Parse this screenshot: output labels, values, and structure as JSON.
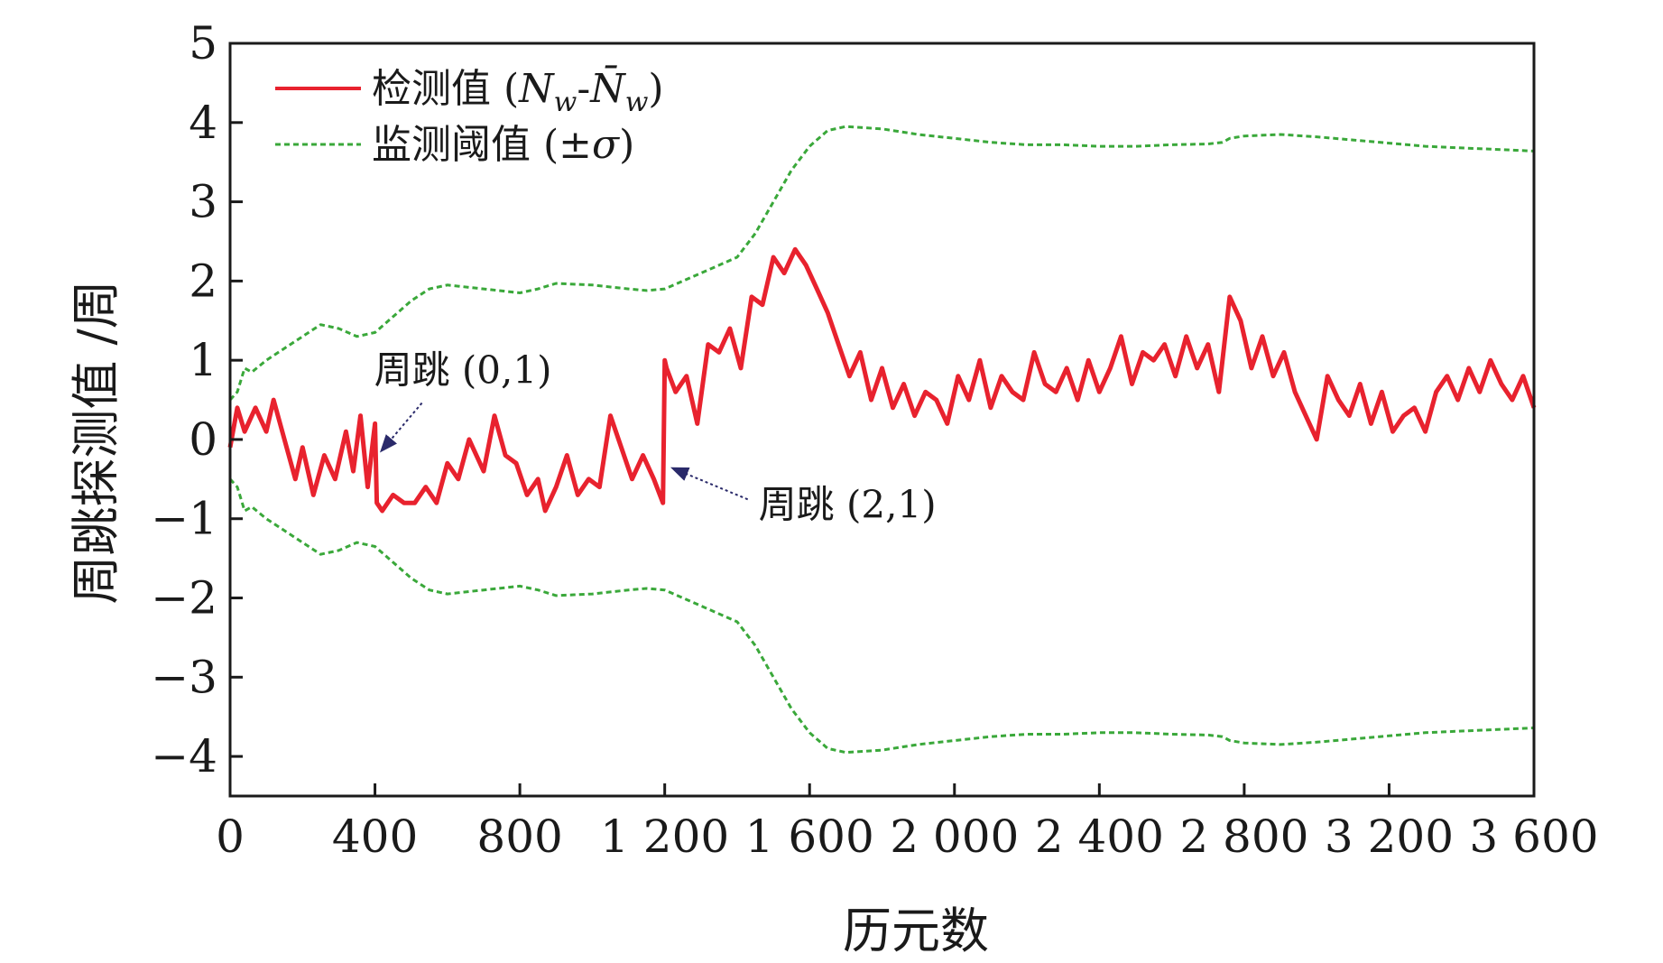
{
  "chart_data": {
    "type": "line",
    "title": "",
    "xlabel": "历元数",
    "ylabel": "周跳探测值 /周",
    "xlim": [
      0,
      3600
    ],
    "ylim": [
      -4.5,
      5
    ],
    "x_ticks": [
      0,
      400,
      800,
      1200,
      1600,
      2000,
      2400,
      2800,
      3200,
      3600
    ],
    "x_tick_labels": [
      "0",
      "400",
      "800",
      "1 200",
      "1 600",
      "2 000",
      "2 400",
      "2 800",
      "3 200",
      "3 600"
    ],
    "y_ticks": [
      -4,
      -3,
      -2,
      -1,
      0,
      1,
      2,
      3,
      4,
      5
    ],
    "y_tick_labels": [
      "−4",
      "−3",
      "−2",
      "−1",
      "0",
      "1",
      "2",
      "3",
      "4",
      "5"
    ],
    "grid": false,
    "legend_position": "top-left",
    "series": [
      {
        "name": "检测值 (Nw-N̄w)",
        "color": "#e8222e",
        "style": "solid",
        "x": [
          0,
          20,
          40,
          70,
          100,
          120,
          150,
          180,
          200,
          230,
          260,
          290,
          320,
          340,
          360,
          380,
          395,
          400,
          405,
          420,
          450,
          480,
          510,
          540,
          570,
          600,
          630,
          660,
          700,
          730,
          760,
          790,
          820,
          850,
          870,
          900,
          930,
          960,
          990,
          1020,
          1050,
          1080,
          1110,
          1140,
          1170,
          1195,
          1200,
          1205,
          1230,
          1260,
          1290,
          1320,
          1350,
          1380,
          1410,
          1440,
          1470,
          1500,
          1530,
          1560,
          1590,
          1620,
          1650,
          1680,
          1710,
          1740,
          1770,
          1800,
          1830,
          1860,
          1890,
          1920,
          1950,
          1980,
          2010,
          2040,
          2070,
          2100,
          2130,
          2160,
          2190,
          2220,
          2250,
          2280,
          2310,
          2340,
          2370,
          2400,
          2430,
          2460,
          2490,
          2520,
          2550,
          2580,
          2610,
          2640,
          2670,
          2700,
          2730,
          2760,
          2790,
          2820,
          2850,
          2880,
          2910,
          2940,
          2970,
          3000,
          3030,
          3060,
          3090,
          3120,
          3150,
          3180,
          3210,
          3240,
          3270,
          3300,
          3330,
          3360,
          3390,
          3420,
          3450,
          3480,
          3510,
          3540,
          3570,
          3600
        ],
        "y": [
          -0.1,
          0.4,
          0.1,
          0.4,
          0.1,
          0.5,
          0.0,
          -0.5,
          -0.1,
          -0.7,
          -0.2,
          -0.5,
          0.1,
          -0.4,
          0.3,
          -0.6,
          0.0,
          0.2,
          -0.8,
          -0.9,
          -0.7,
          -0.8,
          -0.8,
          -0.6,
          -0.8,
          -0.3,
          -0.5,
          0.0,
          -0.4,
          0.3,
          -0.2,
          -0.3,
          -0.7,
          -0.5,
          -0.9,
          -0.6,
          -0.2,
          -0.7,
          -0.5,
          -0.6,
          0.3,
          -0.1,
          -0.5,
          -0.2,
          -0.5,
          -0.8,
          1.0,
          0.9,
          0.6,
          0.8,
          0.2,
          1.2,
          1.1,
          1.4,
          0.9,
          1.8,
          1.7,
          2.3,
          2.1,
          2.4,
          2.2,
          1.9,
          1.6,
          1.2,
          0.8,
          1.1,
          0.5,
          0.9,
          0.4,
          0.7,
          0.3,
          0.6,
          0.5,
          0.2,
          0.8,
          0.5,
          1.0,
          0.4,
          0.8,
          0.6,
          0.5,
          1.1,
          0.7,
          0.6,
          0.9,
          0.5,
          1.0,
          0.6,
          0.9,
          1.3,
          0.7,
          1.1,
          1.0,
          1.2,
          0.8,
          1.3,
          0.9,
          1.2,
          0.6,
          1.8,
          1.5,
          0.9,
          1.3,
          0.8,
          1.1,
          0.6,
          0.3,
          0.0,
          0.8,
          0.5,
          0.3,
          0.7,
          0.2,
          0.6,
          0.1,
          0.3,
          0.4,
          0.1,
          0.6,
          0.8,
          0.5,
          0.9,
          0.6,
          1.0,
          0.7,
          0.5,
          0.8,
          0.4
        ]
      },
      {
        "name": "监测阈值 (±σ)",
        "color": "#3aa83a",
        "style": "dashed",
        "x": [
          0,
          20,
          40,
          60,
          100,
          150,
          200,
          250,
          300,
          350,
          400,
          450,
          500,
          550,
          600,
          700,
          800,
          850,
          900,
          1000,
          1100,
          1150,
          1200,
          1300,
          1400,
          1450,
          1500,
          1550,
          1600,
          1650,
          1700,
          1800,
          1900,
          2000,
          2100,
          2200,
          2300,
          2400,
          2500,
          2600,
          2700,
          2740,
          2760,
          2800,
          2900,
          3000,
          3100,
          3200,
          3300,
          3400,
          3500,
          3600
        ],
        "y": [
          0.5,
          0.6,
          0.9,
          0.85,
          1.0,
          1.15,
          1.3,
          1.45,
          1.4,
          1.3,
          1.35,
          1.55,
          1.75,
          1.9,
          1.95,
          1.9,
          1.85,
          1.9,
          1.97,
          1.95,
          1.9,
          1.88,
          1.9,
          2.1,
          2.3,
          2.6,
          3.0,
          3.4,
          3.7,
          3.9,
          3.95,
          3.92,
          3.85,
          3.8,
          3.75,
          3.72,
          3.72,
          3.7,
          3.7,
          3.72,
          3.73,
          3.75,
          3.8,
          3.83,
          3.85,
          3.82,
          3.78,
          3.74,
          3.7,
          3.68,
          3.66,
          3.64
        ]
      }
    ],
    "annotations": [
      {
        "text": "周跳 (0,1)",
        "x": 410,
        "y": -0.2
      },
      {
        "text": "周跳 (2,1)",
        "x": 1210,
        "y": -0.3
      }
    ]
  },
  "legend": {
    "item1_prefix": "检测值 (",
    "item1_n": "N",
    "item1_sub": "w",
    "item1_dash": "-",
    "item1_nbar": "N̄",
    "item1_sub2": "w",
    "item1_suffix": ")",
    "item2_prefix": "监测阈值 (±",
    "item2_sigma": "σ",
    "item2_suffix": ")"
  }
}
